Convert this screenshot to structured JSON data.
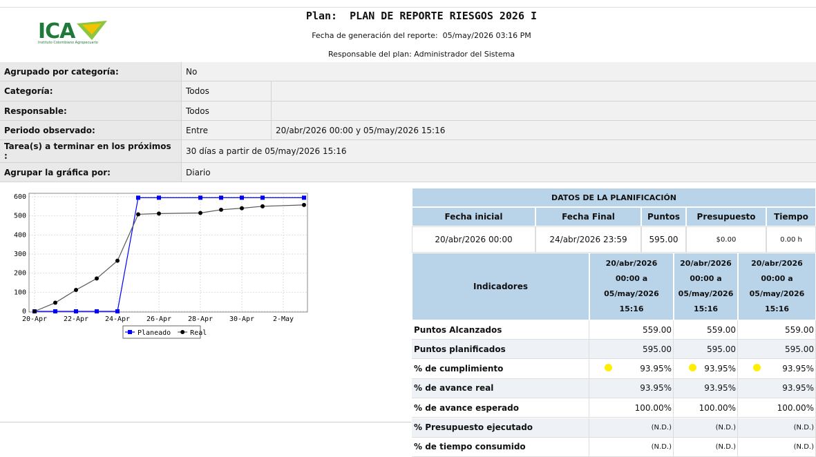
{
  "header": {
    "logo": "ICA",
    "logo_subtitle": "Instituto Colombiano Agropecuario",
    "title": "Plan:  PLAN DE REPORTE RIESGOS 2026 I",
    "generated": "Fecha de generación del reporte:  05/may/2026 03:16 PM",
    "owner": "Responsable del plan: Administrador del Sistema"
  },
  "filters": [
    [
      "Agrupado por categoría:",
      "No"
    ],
    [
      "Categoría:",
      "Todos"
    ],
    [
      "Responsable:",
      "Todos"
    ],
    [
      "Periodo observado:",
      "Entre",
      "20/abr/2026 00:00 y 05/may/2026 15:16"
    ],
    [
      "Tarea(s) a terminar en los próximos :",
      "30 días a partir de 05/may/2026 15:16"
    ],
    [
      "Agrupar la gráfica por:",
      "Diario"
    ]
  ],
  "chart_data": {
    "type": "line",
    "x": [
      "20-Apr",
      "21-Apr",
      "22-Apr",
      "23-Apr",
      "24-Apr",
      "25-Apr",
      "26-Apr",
      "28-Apr",
      "29-Apr",
      "30-Apr",
      "1-May",
      "3-May"
    ],
    "xlim": [
      "20-Apr",
      "3-May"
    ],
    "xticks": [
      "20-Apr",
      "22-Apr",
      "24-Apr",
      "26-Apr",
      "28-Apr",
      "30-Apr",
      "2-May"
    ],
    "ylim": [
      0,
      600
    ],
    "yticks": [
      0,
      100,
      200,
      300,
      400,
      500,
      600
    ],
    "grid": true,
    "legend": "bottom",
    "series": [
      {
        "name": "Planeado",
        "color": "#0000ff",
        "marker": "square",
        "values": [
          0,
          0,
          0,
          0,
          0,
          595,
          595,
          595,
          595,
          595,
          595,
          595
        ]
      },
      {
        "name": "Real",
        "color": "#000000",
        "line_color": "#555555",
        "marker": "circle",
        "values": [
          0,
          45,
          112,
          172,
          265,
          508,
          512,
          515,
          532,
          540,
          550,
          557
        ]
      }
    ]
  },
  "planning": {
    "title": "DATOS DE LA PLANIFICACIÓN",
    "columns": [
      "Fecha inicial",
      "Fecha Final",
      "Puntos",
      "Presupuesto",
      "Tiempo"
    ],
    "row": [
      "20/abr/2026 00:00",
      "24/abr/2026 23:59",
      "595.00",
      "$0.00",
      "0.00 h"
    ]
  },
  "indicators": {
    "columns": [
      "Indicadores",
      "20/abr/2026 00:00 a 05/may/2026 15:16",
      "20/abr/2026 00:00 a 05/may/2026 15:16",
      "20/abr/2026 00:00 a 05/may/2026 15:16"
    ],
    "rows": [
      {
        "label": "Puntos Alcanzados",
        "values": [
          "559.00",
          "559.00",
          "559.00"
        ]
      },
      {
        "label": "Puntos planificados",
        "values": [
          "595.00",
          "595.00",
          "595.00"
        ]
      },
      {
        "label": "% de cumplimiento",
        "values": [
          "93.95%",
          "93.95%",
          "93.95%"
        ]
      },
      {
        "label": "% de avance real",
        "values": [
          "93.95%",
          "93.95%",
          "93.95%"
        ]
      },
      {
        "label": "% de avance esperado",
        "values": [
          "100.00%",
          "100.00%",
          "100.00%"
        ]
      },
      {
        "label": "% Presupuesto ejecutado",
        "values": [
          "(N.D.)",
          "(N.D.)",
          "(N.D.)"
        ]
      },
      {
        "label": "% de tiempo consumido",
        "values": [
          "(N.D.)",
          "(N.D.)",
          "(N.D.)"
        ]
      }
    ]
  }
}
